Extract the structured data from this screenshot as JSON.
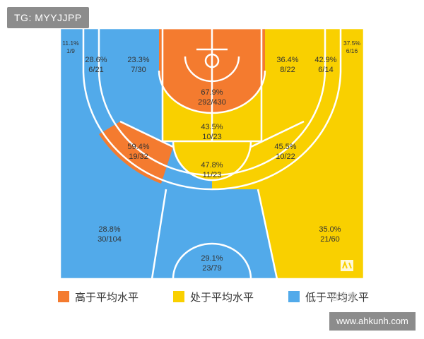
{
  "overlay": {
    "tg_badge": "TG: MYYJJPP",
    "site_badge": "www.ahkunh.com",
    "watermark": "@千真"
  },
  "colors": {
    "above": "#F47B2F",
    "average": "#F9D000",
    "below": "#52AAEA",
    "lines": "#FFFFFF"
  },
  "legend": [
    {
      "key": "above",
      "label": "高于平均水平"
    },
    {
      "key": "average",
      "label": "处于平均水平"
    },
    {
      "key": "below",
      "label": "低于平均水平"
    }
  ],
  "chart_data": {
    "type": "heatmap",
    "title": "",
    "zones": [
      {
        "id": "left-corner-three",
        "pct": "11.1%",
        "made_attempted": "1/9",
        "made": 1,
        "attempted": 9,
        "level": "below"
      },
      {
        "id": "left-wing-long-two",
        "pct": "28.6%",
        "made_attempted": "6/21",
        "made": 6,
        "attempted": 21,
        "level": "below"
      },
      {
        "id": "left-baseline-mid",
        "pct": "23.3%",
        "made_attempted": "7/30",
        "made": 7,
        "attempted": 30,
        "level": "below"
      },
      {
        "id": "restricted-area",
        "pct": "67.9%",
        "made_attempted": "292/430",
        "made": 292,
        "attempted": 430,
        "level": "above"
      },
      {
        "id": "right-baseline-mid",
        "pct": "36.4%",
        "made_attempted": "8/22",
        "made": 8,
        "attempted": 22,
        "level": "average"
      },
      {
        "id": "right-wing-long-two",
        "pct": "42.9%",
        "made_attempted": "6/14",
        "made": 6,
        "attempted": 14,
        "level": "average"
      },
      {
        "id": "right-corner-three",
        "pct": "37.5%",
        "made_attempted": "6/16",
        "made": 6,
        "attempted": 16,
        "level": "average"
      },
      {
        "id": "paint-non-ra",
        "pct": "43.5%",
        "made_attempted": "10/23",
        "made": 10,
        "attempted": 23,
        "level": "average"
      },
      {
        "id": "left-elbow-mid",
        "pct": "59.4%",
        "made_attempted": "19/32",
        "made": 19,
        "attempted": 32,
        "level": "above"
      },
      {
        "id": "right-elbow-mid",
        "pct": "45.5%",
        "made_attempted": "10/22",
        "made": 10,
        "attempted": 22,
        "level": "average"
      },
      {
        "id": "top-key-mid",
        "pct": "47.8%",
        "made_attempted": "11/23",
        "made": 11,
        "attempted": 23,
        "level": "average"
      },
      {
        "id": "left-wing-three",
        "pct": "28.8%",
        "made_attempted": "30/104",
        "made": 30,
        "attempted": 104,
        "level": "below"
      },
      {
        "id": "right-wing-three",
        "pct": "35.0%",
        "made_attempted": "21/60",
        "made": 21,
        "attempted": 60,
        "level": "average"
      },
      {
        "id": "top-key-three",
        "pct": "29.1%",
        "made_attempted": "23/79",
        "made": 23,
        "attempted": 79,
        "level": "below"
      }
    ]
  }
}
